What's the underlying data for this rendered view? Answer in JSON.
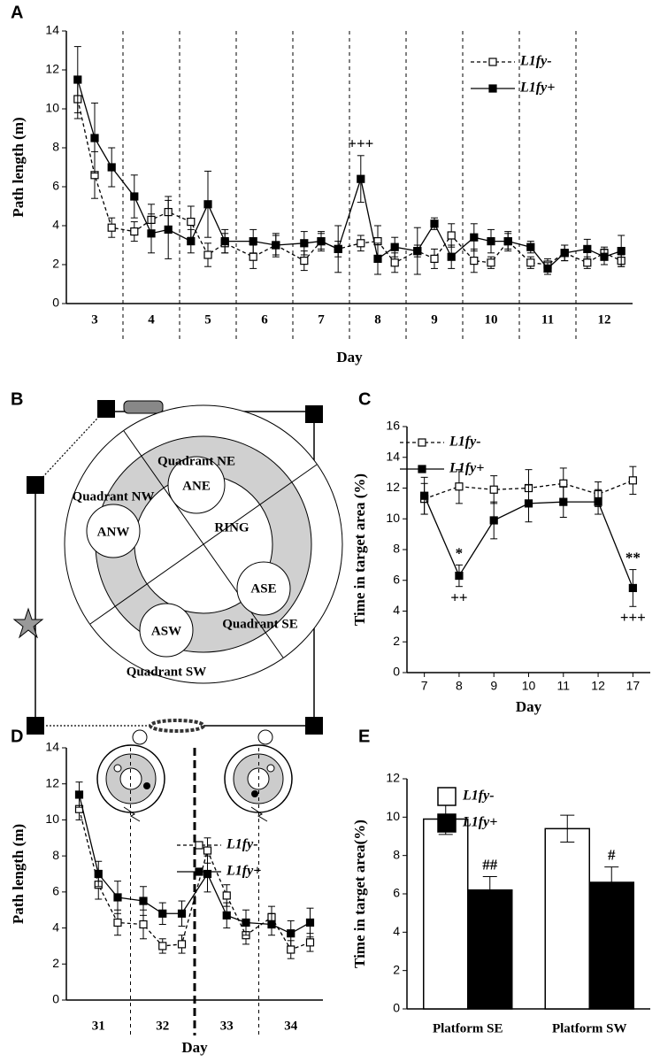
{
  "chart_data": [
    {
      "type": "line",
      "panel": "A",
      "ylabel": "Path length (m)",
      "xlabel": "Day",
      "x": [
        2.7,
        3,
        3.3,
        3.7,
        4,
        4.3,
        4.7,
        5,
        5.3,
        5.8,
        6.2,
        6.7,
        7,
        7.3,
        7.7,
        8,
        8.3,
        8.7,
        9,
        9.3,
        9.7,
        10,
        10.3,
        10.7,
        11,
        11.3,
        11.7,
        12,
        12.3
      ],
      "xlim": [
        2.5,
        12.5
      ],
      "xticks": [
        3,
        4,
        5,
        6,
        7,
        8,
        9,
        10,
        11,
        12
      ],
      "ylim": [
        0,
        14
      ],
      "yticks": [
        0,
        2,
        4,
        6,
        8,
        10,
        12,
        14
      ],
      "dividers": [
        3.5,
        4.5,
        5.5,
        6.5,
        7.5,
        8.5,
        9.5,
        10.5,
        11.5
      ],
      "series": [
        {
          "name": "L1fy-",
          "color": "#000000",
          "marker": "open",
          "dashed": true,
          "values": [
            10.5,
            6.6,
            3.9,
            3.7,
            4.3,
            4.7,
            4.2,
            2.5,
            3.1,
            2.4,
            3.0,
            2.2,
            3.2,
            2.8,
            3.1,
            3.2,
            2.1,
            2.7,
            2.3,
            3.5,
            2.2,
            2.1,
            3.2,
            2.1,
            2.0,
            2.6,
            2.1,
            2.6,
            2.2
          ],
          "errors": [
            1.0,
            1.2,
            0.5,
            0.5,
            0.8,
            0.8,
            0.8,
            0.6,
            0.5,
            0.6,
            0.6,
            0.5,
            0.4,
            0.4,
            0.4,
            0.8,
            0.5,
            0.3,
            0.5,
            0.6,
            0.6,
            0.3,
            0.4,
            0.3,
            0.3,
            0.4,
            0.3,
            0.3,
            0.3
          ]
        },
        {
          "name": "L1fy+",
          "color": "#000000",
          "marker": "filled",
          "dashed": false,
          "values": [
            11.5,
            8.5,
            7.0,
            5.5,
            3.6,
            3.8,
            3.2,
            5.1,
            3.2,
            3.2,
            3.0,
            3.1,
            3.2,
            2.8,
            6.4,
            2.3,
            2.9,
            2.7,
            4.1,
            2.4,
            3.4,
            3.2,
            3.2,
            2.9,
            1.8,
            2.6,
            2.8,
            2.4,
            2.7
          ],
          "errors": [
            1.7,
            1.8,
            1.0,
            1.1,
            1.0,
            1.5,
            0.6,
            1.7,
            0.6,
            0.6,
            0.5,
            0.6,
            0.5,
            1.2,
            1.2,
            0.8,
            0.5,
            1.2,
            0.3,
            0.6,
            0.7,
            0.6,
            0.5,
            0.3,
            0.3,
            0.4,
            0.5,
            0.4,
            0.8
          ]
        }
      ],
      "annotations": [
        "+++"
      ]
    },
    {
      "type": "line",
      "panel": "C",
      "ylabel": "Time in target area (%)",
      "xlabel": "Day",
      "categories": [
        "7",
        "8",
        "9",
        "10",
        "11",
        "12",
        "17"
      ],
      "ylim": [
        0,
        16
      ],
      "yticks": [
        0,
        2,
        4,
        6,
        8,
        10,
        12,
        14,
        16
      ],
      "series": [
        {
          "name": "L1fy-",
          "color": "#000000",
          "marker": "open",
          "dashed": true,
          "values": [
            11.3,
            12.1,
            11.9,
            12.0,
            12.3,
            11.6,
            12.5
          ],
          "errors": [
            1.0,
            1.1,
            0.9,
            1.2,
            1.0,
            0.8,
            0.9
          ]
        },
        {
          "name": "L1fy+",
          "color": "#000000",
          "marker": "filled",
          "dashed": false,
          "values": [
            11.5,
            6.3,
            9.9,
            11.0,
            11.1,
            11.1,
            5.5
          ],
          "errors": [
            1.2,
            0.7,
            1.2,
            1.2,
            1.0,
            0.8,
            1.2
          ]
        }
      ],
      "annotations": [
        "*",
        "++",
        "**",
        "+++"
      ]
    },
    {
      "type": "line",
      "panel": "D",
      "ylabel": "Path length (m)",
      "xlabel": "Day",
      "x": [
        30.7,
        31,
        31.3,
        31.7,
        32,
        32.3,
        32.7,
        33,
        33.3,
        33.7,
        34,
        34.3
      ],
      "xlim": [
        30.5,
        34.5
      ],
      "xticks": [
        31,
        32,
        33,
        34
      ],
      "ylim": [
        0,
        14
      ],
      "yticks": [
        0,
        2,
        4,
        6,
        8,
        10,
        12,
        14
      ],
      "dividers": [
        31.5,
        32.5,
        33.5
      ],
      "bold_dividers": [
        32.5
      ],
      "series": [
        {
          "name": "L1fy-",
          "color": "#000000",
          "marker": "open",
          "dashed": true,
          "values": [
            10.6,
            6.4,
            4.3,
            4.2,
            3.0,
            3.1,
            8.3,
            5.8,
            3.6,
            4.6,
            2.8,
            3.2
          ],
          "errors": [
            0.6,
            0.8,
            0.7,
            0.8,
            0.4,
            0.5,
            0.7,
            0.6,
            0.5,
            0.6,
            0.5,
            0.5
          ]
        },
        {
          "name": "L1fy+",
          "color": "#000000",
          "marker": "filled",
          "dashed": false,
          "values": [
            11.4,
            7.0,
            5.7,
            5.5,
            4.8,
            4.8,
            7.0,
            4.7,
            4.3,
            4.2,
            3.7,
            4.3
          ],
          "errors": [
            0.7,
            0.7,
            0.9,
            0.8,
            0.6,
            0.7,
            1.0,
            0.7,
            0.7,
            0.6,
            0.7,
            0.8
          ]
        }
      ],
      "annotations": []
    },
    {
      "type": "bar",
      "panel": "E",
      "ylabel": "Time in target area(%)",
      "categories": [
        "Platform SE",
        "Platform SW"
      ],
      "ylim": [
        0,
        12
      ],
      "yticks": [
        0,
        2,
        4,
        6,
        8,
        10,
        12
      ],
      "series": [
        {
          "name": "L1fy-",
          "color": "#ffffff",
          "values": [
            9.9,
            9.4
          ],
          "errors": [
            0.8,
            0.7
          ]
        },
        {
          "name": "L1fy+",
          "color": "#000000",
          "values": [
            6.2,
            6.6
          ],
          "errors": [
            0.7,
            0.8
          ]
        }
      ],
      "annotations": [
        "##",
        "#"
      ]
    }
  ],
  "diagram": {
    "panel": "B",
    "labels": [
      "Quadrant NE",
      "Quadrant NW",
      "ANE",
      "ANW",
      "RING",
      "ASE",
      "ASW",
      "Quadrant SE",
      "Quadrant SW"
    ]
  }
}
